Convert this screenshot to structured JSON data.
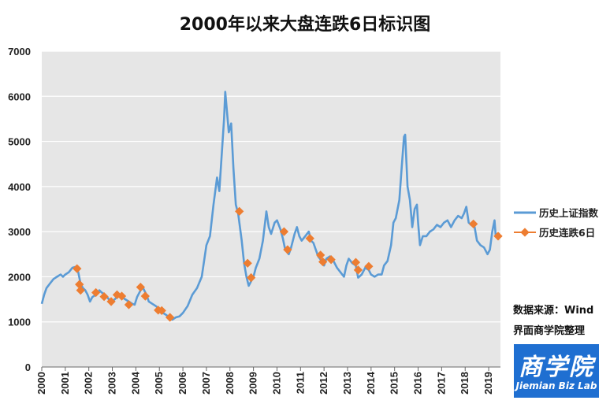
{
  "chart_data": {
    "type": "line",
    "title": "2000年以来大盘连跌6日标识图",
    "xlabel": "",
    "ylabel": "",
    "ylim": [
      0,
      7000
    ],
    "yticks": [
      0,
      1000,
      2000,
      3000,
      4000,
      5000,
      6000,
      7000
    ],
    "xlim": [
      2000,
      2019.5
    ],
    "xticks": [
      "2000",
      "2001",
      "2002",
      "2003",
      "2004",
      "2005",
      "2006",
      "2007",
      "2008",
      "2009",
      "2010",
      "2011",
      "2012",
      "2013",
      "2014",
      "2015",
      "2016",
      "2017",
      "2018",
      "2019"
    ],
    "grid": true,
    "legend_position": "right",
    "series": [
      {
        "name": "历史上证指数",
        "color": "#5b9bd5",
        "points": [
          [
            2000.0,
            1400
          ],
          [
            2000.1,
            1600
          ],
          [
            2000.2,
            1750
          ],
          [
            2000.35,
            1850
          ],
          [
            2000.5,
            1950
          ],
          [
            2000.65,
            2000
          ],
          [
            2000.8,
            2050
          ],
          [
            2000.9,
            2000
          ],
          [
            2001.0,
            2050
          ],
          [
            2001.15,
            2100
          ],
          [
            2001.3,
            2200
          ],
          [
            2001.45,
            2220
          ],
          [
            2001.55,
            2100
          ],
          [
            2001.65,
            1850
          ],
          [
            2001.75,
            1750
          ],
          [
            2001.85,
            1700
          ],
          [
            2001.95,
            1600
          ],
          [
            2002.05,
            1450
          ],
          [
            2002.15,
            1550
          ],
          [
            2002.3,
            1600
          ],
          [
            2002.45,
            1700
          ],
          [
            2002.55,
            1650
          ],
          [
            2002.7,
            1600
          ],
          [
            2002.85,
            1500
          ],
          [
            2003.0,
            1450
          ],
          [
            2003.1,
            1500
          ],
          [
            2003.25,
            1580
          ],
          [
            2003.4,
            1550
          ],
          [
            2003.55,
            1500
          ],
          [
            2003.7,
            1450
          ],
          [
            2003.85,
            1400
          ],
          [
            2003.95,
            1380
          ],
          [
            2004.05,
            1550
          ],
          [
            2004.2,
            1700
          ],
          [
            2004.3,
            1760
          ],
          [
            2004.45,
            1600
          ],
          [
            2004.55,
            1450
          ],
          [
            2004.7,
            1400
          ],
          [
            2004.85,
            1350
          ],
          [
            2005.0,
            1280
          ],
          [
            2005.15,
            1200
          ],
          [
            2005.3,
            1150
          ],
          [
            2005.45,
            1080
          ],
          [
            2005.55,
            1050
          ],
          [
            2005.7,
            1100
          ],
          [
            2005.85,
            1120
          ],
          [
            2006.0,
            1200
          ],
          [
            2006.2,
            1350
          ],
          [
            2006.4,
            1600
          ],
          [
            2006.6,
            1750
          ],
          [
            2006.8,
            2000
          ],
          [
            2007.0,
            2700
          ],
          [
            2007.15,
            2900
          ],
          [
            2007.3,
            3600
          ],
          [
            2007.45,
            4200
          ],
          [
            2007.55,
            3900
          ],
          [
            2007.65,
            4700
          ],
          [
            2007.75,
            5500
          ],
          [
            2007.8,
            6100
          ],
          [
            2007.85,
            5800
          ],
          [
            2007.95,
            5200
          ],
          [
            2008.05,
            5400
          ],
          [
            2008.15,
            4400
          ],
          [
            2008.25,
            3600
          ],
          [
            2008.35,
            3400
          ],
          [
            2008.5,
            2800
          ],
          [
            2008.6,
            2300
          ],
          [
            2008.7,
            2000
          ],
          [
            2008.8,
            1800
          ],
          [
            2008.9,
            1900
          ],
          [
            2009.0,
            2000
          ],
          [
            2009.1,
            2200
          ],
          [
            2009.25,
            2400
          ],
          [
            2009.4,
            2800
          ],
          [
            2009.55,
            3450
          ],
          [
            2009.65,
            3100
          ],
          [
            2009.75,
            2950
          ],
          [
            2009.9,
            3200
          ],
          [
            2010.0,
            3250
          ],
          [
            2010.15,
            3050
          ],
          [
            2010.25,
            2850
          ],
          [
            2010.35,
            2600
          ],
          [
            2010.5,
            2500
          ],
          [
            2010.6,
            2650
          ],
          [
            2010.75,
            2950
          ],
          [
            2010.85,
            3100
          ],
          [
            2010.95,
            2900
          ],
          [
            2011.05,
            2800
          ],
          [
            2011.2,
            2900
          ],
          [
            2011.35,
            3000
          ],
          [
            2011.45,
            2800
          ],
          [
            2011.55,
            2750
          ],
          [
            2011.65,
            2600
          ],
          [
            2011.75,
            2450
          ],
          [
            2011.9,
            2350
          ],
          [
            2012.0,
            2250
          ],
          [
            2012.1,
            2400
          ],
          [
            2012.25,
            2450
          ],
          [
            2012.4,
            2350
          ],
          [
            2012.55,
            2200
          ],
          [
            2012.7,
            2100
          ],
          [
            2012.85,
            2000
          ],
          [
            2012.95,
            2250
          ],
          [
            2013.05,
            2400
          ],
          [
            2013.2,
            2300
          ],
          [
            2013.35,
            2250
          ],
          [
            2013.45,
            1980
          ],
          [
            2013.6,
            2050
          ],
          [
            2013.75,
            2200
          ],
          [
            2013.9,
            2150
          ],
          [
            2014.0,
            2050
          ],
          [
            2014.15,
            2000
          ],
          [
            2014.3,
            2050
          ],
          [
            2014.45,
            2050
          ],
          [
            2014.55,
            2250
          ],
          [
            2014.7,
            2350
          ],
          [
            2014.85,
            2700
          ],
          [
            2014.95,
            3200
          ],
          [
            2015.05,
            3300
          ],
          [
            2015.2,
            3700
          ],
          [
            2015.3,
            4400
          ],
          [
            2015.4,
            5100
          ],
          [
            2015.45,
            5150
          ],
          [
            2015.55,
            4000
          ],
          [
            2015.65,
            3700
          ],
          [
            2015.75,
            3100
          ],
          [
            2015.85,
            3500
          ],
          [
            2015.95,
            3600
          ],
          [
            2016.0,
            3200
          ],
          [
            2016.08,
            2700
          ],
          [
            2016.2,
            2900
          ],
          [
            2016.35,
            2900
          ],
          [
            2016.5,
            3000
          ],
          [
            2016.65,
            3050
          ],
          [
            2016.8,
            3150
          ],
          [
            2016.95,
            3100
          ],
          [
            2017.1,
            3200
          ],
          [
            2017.25,
            3250
          ],
          [
            2017.4,
            3100
          ],
          [
            2017.55,
            3250
          ],
          [
            2017.7,
            3350
          ],
          [
            2017.85,
            3300
          ],
          [
            2017.95,
            3400
          ],
          [
            2018.05,
            3550
          ],
          [
            2018.15,
            3200
          ],
          [
            2018.25,
            3150
          ],
          [
            2018.4,
            3100
          ],
          [
            2018.5,
            2800
          ],
          [
            2018.65,
            2700
          ],
          [
            2018.8,
            2650
          ],
          [
            2018.95,
            2500
          ],
          [
            2019.05,
            2600
          ],
          [
            2019.15,
            3000
          ],
          [
            2019.25,
            3250
          ],
          [
            2019.3,
            2900
          ],
          [
            2019.4,
            2950
          ],
          [
            2019.5,
            2900
          ]
        ]
      },
      {
        "name": "历史连跌6日",
        "color": "#ed7d31",
        "points": [
          [
            2001.5,
            2180
          ],
          [
            2001.6,
            1830
          ],
          [
            2001.65,
            1700
          ],
          [
            2002.3,
            1650
          ],
          [
            2002.65,
            1560
          ],
          [
            2002.95,
            1450
          ],
          [
            2003.2,
            1600
          ],
          [
            2003.4,
            1570
          ],
          [
            2003.7,
            1380
          ],
          [
            2004.2,
            1770
          ],
          [
            2004.4,
            1570
          ],
          [
            2004.95,
            1260
          ],
          [
            2005.1,
            1250
          ],
          [
            2005.45,
            1100
          ],
          [
            2008.4,
            3450
          ],
          [
            2008.75,
            2300
          ],
          [
            2008.9,
            1980
          ],
          [
            2010.3,
            3000
          ],
          [
            2010.45,
            2600
          ],
          [
            2011.4,
            2850
          ],
          [
            2011.85,
            2480
          ],
          [
            2011.95,
            2330
          ],
          [
            2012.3,
            2380
          ],
          [
            2013.35,
            2320
          ],
          [
            2013.45,
            2150
          ],
          [
            2013.9,
            2230
          ],
          [
            2018.35,
            3170
          ],
          [
            2019.4,
            2900
          ]
        ]
      }
    ]
  },
  "source": {
    "line1": "数据来源：Wind",
    "line2": "界面商学院整理"
  },
  "logo": {
    "cn": "商学院",
    "en": "Jiemian Biz Lab"
  }
}
